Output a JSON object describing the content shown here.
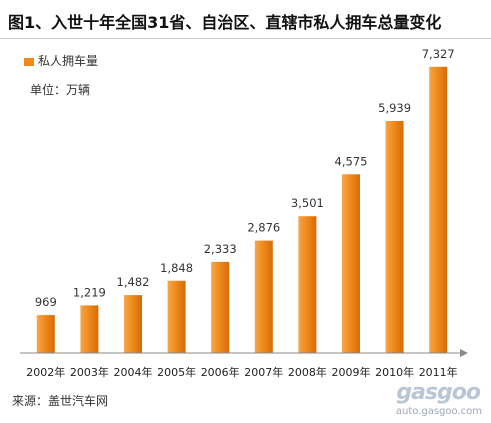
{
  "chart_data": {
    "type": "bar",
    "title": "图1、入世十年全国31省、自治区、直辖市私人拥车总量变化",
    "unit": "单位：万辆",
    "legend": "私人拥车量",
    "legend_position": "top-left",
    "grid": false,
    "categories": [
      "2002年",
      "2003年",
      "2004年",
      "2005年",
      "2006年",
      "2007年",
      "2008年",
      "2009年",
      "2010年",
      "2011年"
    ],
    "series": [
      {
        "name": "私人拥车量",
        "values": [
          969,
          1219,
          1482,
          1848,
          2333,
          2876,
          3501,
          4575,
          5939,
          7327
        ]
      }
    ],
    "value_labels": [
      "969",
      "1,219",
      "1,482",
      "1,848",
      "2,333",
      "2,876",
      "3,501",
      "4,575",
      "5,939",
      "7,327"
    ],
    "ylim": [
      0,
      7500
    ],
    "bar_color": "#f08a1c"
  },
  "source": "来源：盖世汽车网",
  "watermark": {
    "logo": "gasgoo",
    "url": "auto.gasgoo.com"
  }
}
